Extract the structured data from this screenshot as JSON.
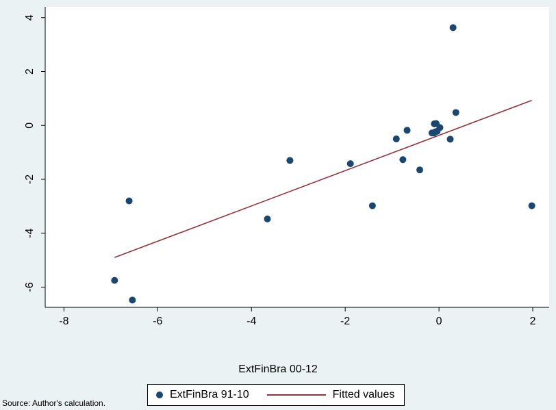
{
  "chart_data": {
    "type": "scatter",
    "xlabel": "ExtFinBra 00-12",
    "ylabel": "",
    "xlim": [
      -8.4,
      2.35
    ],
    "ylim": [
      -6.75,
      4.4
    ],
    "x_ticks": [
      -8,
      -6,
      -4,
      -2,
      0,
      2
    ],
    "y_ticks": [
      -6,
      -4,
      -2,
      0,
      2,
      4
    ],
    "grid": false,
    "legend_position": "bottom",
    "series": [
      {
        "name": "ExtFinBra 91-10",
        "kind": "scatter",
        "color": "#1a476f",
        "points": [
          {
            "x": -6.92,
            "y": -5.75
          },
          {
            "x": -6.54,
            "y": -6.48
          },
          {
            "x": -6.61,
            "y": -2.8
          },
          {
            "x": -3.66,
            "y": -3.47
          },
          {
            "x": -3.18,
            "y": -1.3
          },
          {
            "x": -1.89,
            "y": -1.42
          },
          {
            "x": -1.42,
            "y": -2.98
          },
          {
            "x": -0.91,
            "y": -0.5
          },
          {
            "x": -0.77,
            "y": -1.27
          },
          {
            "x": -0.68,
            "y": -0.18
          },
          {
            "x": -0.41,
            "y": -1.65
          },
          {
            "x": -0.15,
            "y": -0.28
          },
          {
            "x": -0.11,
            "y": -0.28
          },
          {
            "x": -0.1,
            "y": 0.06
          },
          {
            "x": -0.08,
            "y": -0.24
          },
          {
            "x": -0.06,
            "y": 0.07
          },
          {
            "x": -0.04,
            "y": -0.22
          },
          {
            "x": 0.02,
            "y": -0.08
          },
          {
            "x": 0.24,
            "y": -0.51
          },
          {
            "x": 0.3,
            "y": 3.63
          },
          {
            "x": 0.36,
            "y": 0.48
          },
          {
            "x": 1.98,
            "y": -2.98
          }
        ]
      },
      {
        "name": "Fitted values",
        "kind": "line",
        "color": "#90353b",
        "points": [
          {
            "x": -6.92,
            "y": -4.9
          },
          {
            "x": 1.98,
            "y": 0.93
          }
        ]
      }
    ]
  },
  "source_note": "Source: Author's calculation."
}
